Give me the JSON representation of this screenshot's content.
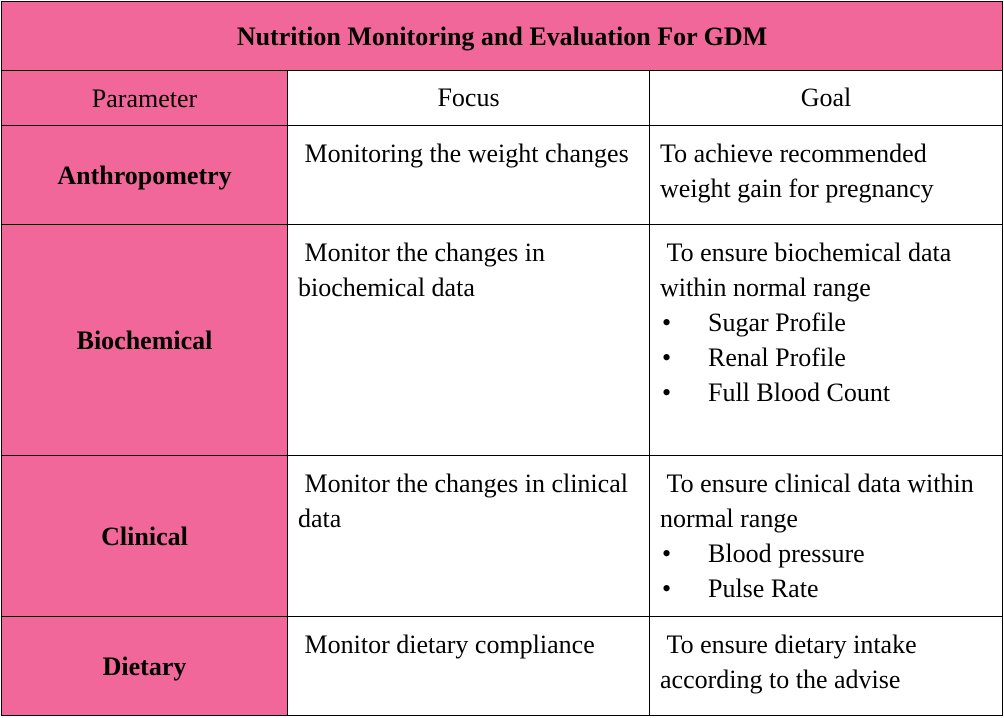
{
  "title": "Nutrition Monitoring and Evaluation For GDM",
  "headers": {
    "parameter": "Parameter",
    "focus": "Focus",
    "goal": "Goal"
  },
  "rows": [
    {
      "parameter": "Anthropometry",
      "focus": " Monitoring the weight changes",
      "goal_intro": "To achieve recommended weight gain for pregnancy",
      "goal_items": []
    },
    {
      "parameter": "Biochemical",
      "focus": " Monitor the changes in biochemical data",
      "goal_intro": " To ensure biochemical data within normal range",
      "goal_items": [
        "Sugar Profile",
        "Renal Profile",
        "Full Blood Count"
      ]
    },
    {
      "parameter": "Clinical",
      "focus": " Monitor the changes in clinical data",
      "goal_intro": " To ensure clinical data within normal range",
      "goal_items": [
        "Blood pressure",
        "Pulse Rate"
      ]
    },
    {
      "parameter": "Dietary",
      "focus": " Monitor dietary compliance",
      "goal_intro": " To ensure dietary intake according to the advise",
      "goal_items": []
    }
  ],
  "bullet_glyph": "•",
  "colors": {
    "accent_pink": "#f2679a",
    "border": "#000000",
    "background": "#ffffff"
  }
}
